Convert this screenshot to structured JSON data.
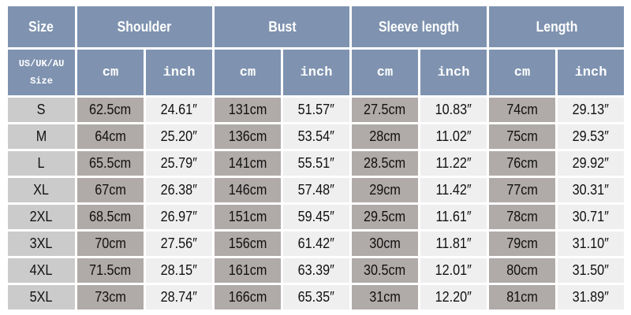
{
  "header": {
    "size": "Size",
    "groups": [
      "Shoulder",
      "Bust",
      "Sleeve length",
      "Length"
    ],
    "size_sub": "US/UK/AU Size",
    "units": [
      "cm",
      "inch"
    ]
  },
  "colors": {
    "header": "#7f93b0",
    "size_cell": "#cbcbcb",
    "cm_cell": "#b0aaa8",
    "inch_cell": "#efefef"
  },
  "rows": [
    [
      "S",
      "62.5cm",
      "24.61″",
      "131cm",
      "51.57″",
      "27.5cm",
      "10.83″",
      "74cm",
      "29.13″"
    ],
    [
      "M",
      "64cm",
      "25.20″",
      "136cm",
      "53.54″",
      "28cm",
      "11.02″",
      "75cm",
      "29.53″"
    ],
    [
      "L",
      "65.5cm",
      "25.79″",
      "141cm",
      "55.51″",
      "28.5cm",
      "11.22″",
      "76cm",
      "29.92″"
    ],
    [
      "XL",
      "67cm",
      "26.38″",
      "146cm",
      "57.48″",
      "29cm",
      "11.42″",
      "77cm",
      "30.31″"
    ],
    [
      "2XL",
      "68.5cm",
      "26.97″",
      "151cm",
      "59.45″",
      "29.5cm",
      "11.61″",
      "78cm",
      "30.71″"
    ],
    [
      "3XL",
      "70cm",
      "27.56″",
      "156cm",
      "61.42″",
      "30cm",
      "11.81″",
      "79cm",
      "31.10″"
    ],
    [
      "4XL",
      "71.5cm",
      "28.15″",
      "161cm",
      "63.39″",
      "30.5cm",
      "12.01″",
      "80cm",
      "31.50″"
    ],
    [
      "5XL",
      "73cm",
      "28.74″",
      "166cm",
      "65.35″",
      "31cm",
      "12.20″",
      "81cm",
      "31.89″"
    ]
  ]
}
